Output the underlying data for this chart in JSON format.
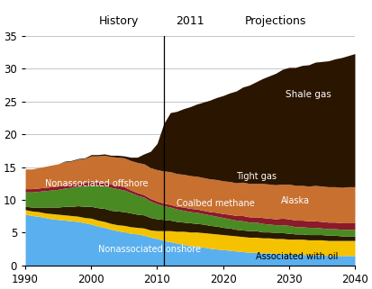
{
  "years": [
    1990,
    1991,
    1992,
    1993,
    1994,
    1995,
    1996,
    1997,
    1998,
    1999,
    2000,
    2001,
    2002,
    2003,
    2004,
    2005,
    2006,
    2007,
    2008,
    2009,
    2010,
    2011,
    2012,
    2013,
    2014,
    2015,
    2016,
    2017,
    2018,
    2019,
    2020,
    2021,
    2022,
    2023,
    2024,
    2025,
    2026,
    2027,
    2028,
    2029,
    2030,
    2031,
    2032,
    2033,
    2034,
    2035,
    2036,
    2037,
    2038,
    2039,
    2040
  ],
  "nonassociated_onshore": [
    7.8,
    7.6,
    7.5,
    7.3,
    7.1,
    7.0,
    6.9,
    6.8,
    6.7,
    6.5,
    6.3,
    6.0,
    5.8,
    5.5,
    5.3,
    5.1,
    4.9,
    4.8,
    4.6,
    4.3,
    4.1,
    3.8,
    3.6,
    3.4,
    3.2,
    3.0,
    2.9,
    2.8,
    2.6,
    2.5,
    2.4,
    2.3,
    2.2,
    2.1,
    2.0,
    2.0,
    1.9,
    1.9,
    1.8,
    1.8,
    1.7,
    1.7,
    1.7,
    1.6,
    1.6,
    1.6,
    1.5,
    1.5,
    1.5,
    1.5,
    1.5
  ],
  "associated_with_oil": [
    0.7,
    0.7,
    0.7,
    0.7,
    0.8,
    0.8,
    0.8,
    0.8,
    0.8,
    0.8,
    0.9,
    0.9,
    0.9,
    0.9,
    0.9,
    1.0,
    1.0,
    1.0,
    1.1,
    1.1,
    1.2,
    1.5,
    1.7,
    1.8,
    2.0,
    2.1,
    2.2,
    2.2,
    2.3,
    2.3,
    2.3,
    2.3,
    2.3,
    2.3,
    2.3,
    2.3,
    2.3,
    2.3,
    2.3,
    2.3,
    2.3,
    2.3,
    2.3,
    2.3,
    2.3,
    2.3,
    2.3,
    2.3,
    2.3,
    2.3,
    2.3
  ],
  "coalbed_methane": [
    0.5,
    0.6,
    0.7,
    0.9,
    1.0,
    1.1,
    1.3,
    1.4,
    1.6,
    1.7,
    1.8,
    1.9,
    2.0,
    2.0,
    2.1,
    2.1,
    2.1,
    2.0,
    2.0,
    1.9,
    1.8,
    1.7,
    1.6,
    1.5,
    1.4,
    1.4,
    1.3,
    1.3,
    1.2,
    1.2,
    1.1,
    1.1,
    1.0,
    1.0,
    1.0,
    1.0,
    0.9,
    0.9,
    0.9,
    0.9,
    0.9,
    0.8,
    0.8,
    0.8,
    0.8,
    0.8,
    0.8,
    0.8,
    0.7,
    0.7,
    0.7
  ],
  "nonassociated_offshore": [
    2.2,
    2.3,
    2.4,
    2.5,
    2.6,
    2.7,
    2.8,
    2.9,
    3.0,
    3.1,
    3.3,
    3.4,
    3.5,
    3.5,
    3.4,
    3.3,
    3.1,
    2.9,
    2.7,
    2.5,
    2.3,
    2.1,
    2.0,
    1.9,
    1.8,
    1.7,
    1.7,
    1.6,
    1.6,
    1.5,
    1.5,
    1.4,
    1.4,
    1.4,
    1.3,
    1.3,
    1.3,
    1.2,
    1.2,
    1.2,
    1.2,
    1.1,
    1.1,
    1.1,
    1.1,
    1.0,
    1.0,
    1.0,
    1.0,
    1.0,
    1.0
  ],
  "alaska": [
    0.5,
    0.5,
    0.5,
    0.5,
    0.5,
    0.5,
    0.5,
    0.5,
    0.5,
    0.5,
    0.5,
    0.5,
    0.5,
    0.5,
    0.5,
    0.5,
    0.4,
    0.4,
    0.4,
    0.4,
    0.4,
    0.4,
    0.4,
    0.4,
    0.5,
    0.5,
    0.5,
    0.5,
    0.5,
    0.6,
    0.6,
    0.7,
    0.7,
    0.8,
    0.8,
    0.8,
    0.9,
    0.9,
    0.9,
    1.0,
    1.0,
    1.0,
    1.0,
    1.0,
    1.0,
    1.0,
    1.0,
    1.0,
    1.0,
    1.0,
    1.0
  ],
  "tight_gas": [
    3.0,
    3.0,
    3.1,
    3.2,
    3.3,
    3.4,
    3.5,
    3.5,
    3.6,
    3.7,
    3.9,
    4.0,
    4.1,
    4.2,
    4.3,
    4.4,
    4.5,
    4.6,
    4.7,
    4.7,
    4.8,
    4.9,
    5.0,
    5.0,
    5.0,
    5.0,
    5.0,
    5.0,
    5.0,
    5.0,
    5.0,
    5.0,
    5.0,
    5.1,
    5.1,
    5.1,
    5.2,
    5.2,
    5.2,
    5.2,
    5.3,
    5.3,
    5.3,
    5.3,
    5.4,
    5.4,
    5.4,
    5.4,
    5.4,
    5.5,
    5.5
  ],
  "shale_gas": [
    0.0,
    0.0,
    0.0,
    0.0,
    0.0,
    0.0,
    0.1,
    0.1,
    0.1,
    0.1,
    0.2,
    0.2,
    0.2,
    0.2,
    0.3,
    0.3,
    0.5,
    0.8,
    1.5,
    2.5,
    4.0,
    7.2,
    9.0,
    9.5,
    10.0,
    10.5,
    11.0,
    11.5,
    12.0,
    12.5,
    13.0,
    13.5,
    14.0,
    14.5,
    15.0,
    15.5,
    16.0,
    16.5,
    17.0,
    17.5,
    17.8,
    18.0,
    18.3,
    18.5,
    18.8,
    19.0,
    19.2,
    19.5,
    19.8,
    20.0,
    20.3
  ],
  "colors": {
    "nonassociated_onshore": "#5aafee",
    "associated_with_oil": "#f5c200",
    "coalbed_methane": "#2a1a00",
    "nonassociated_offshore": "#4a8a22",
    "alaska": "#8b1a2a",
    "tight_gas": "#c87030",
    "shale_gas": "#2a1500"
  },
  "title_history": "History",
  "title_projections": "Projections",
  "divider_year": 2011,
  "xlim": [
    1990,
    2040
  ],
  "ylim": [
    0,
    35
  ],
  "yticks": [
    0,
    5,
    10,
    15,
    20,
    25,
    30,
    35
  ],
  "xticks": [
    1990,
    2000,
    2010,
    2020,
    2030,
    2040
  ],
  "label_associated_with_oil": "Associated with oil"
}
